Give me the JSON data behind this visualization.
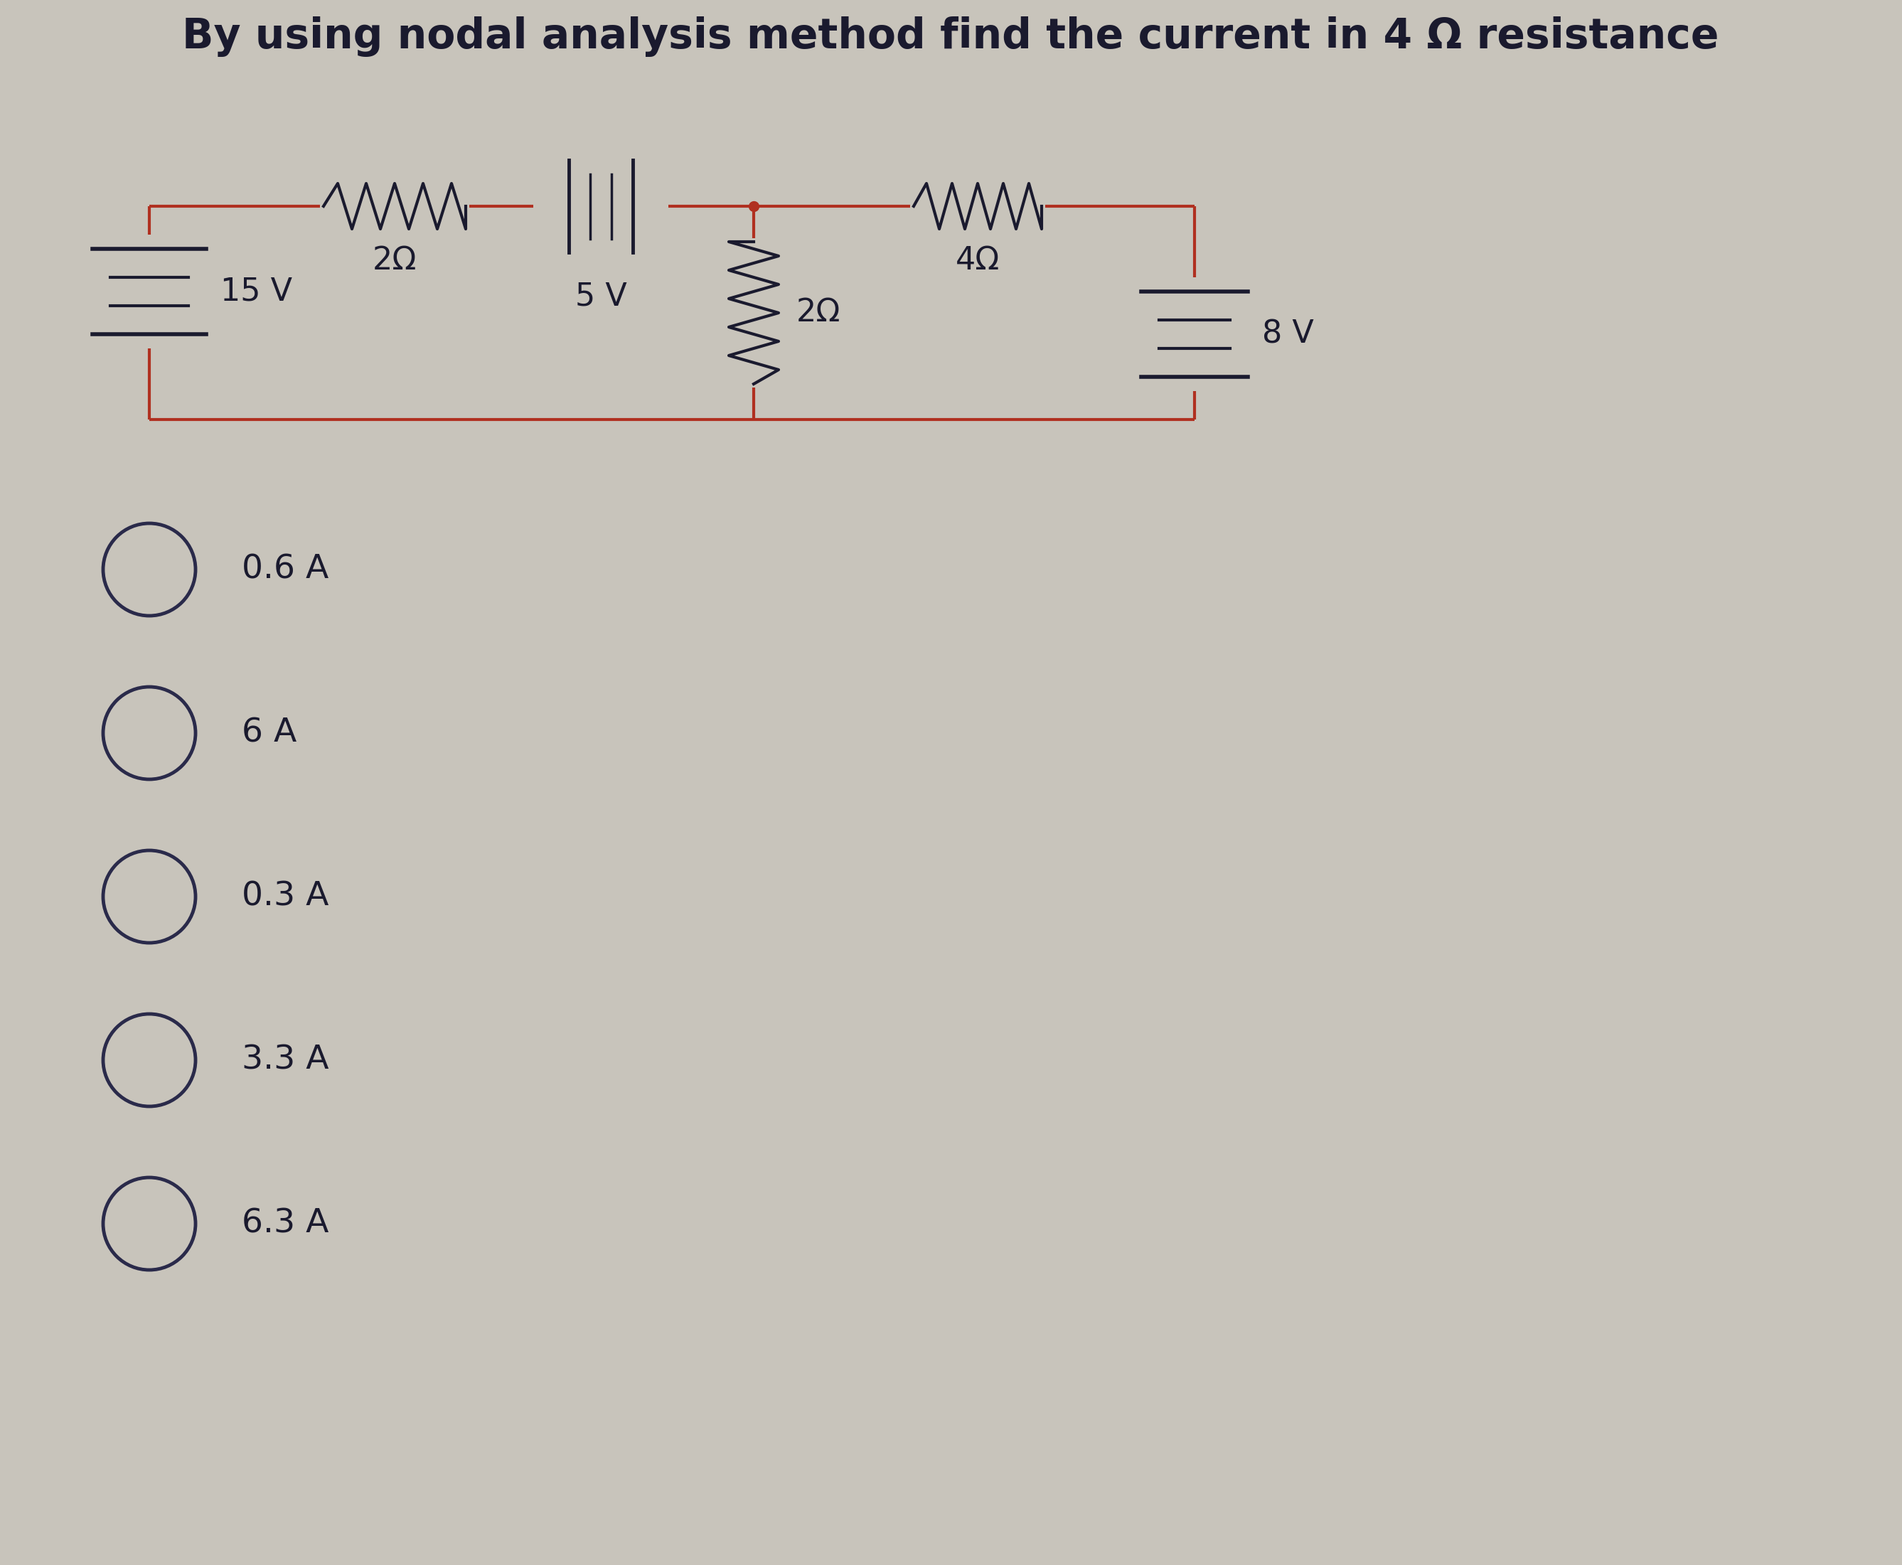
{
  "title": "By using nodal analysis method find the current in 4 Ω resistance",
  "bg_color": "#c8c4bb",
  "circuit_color": "#b03020",
  "component_color": "#1a1a2e",
  "options": [
    "0.6 A",
    "6 A",
    "0.3 A",
    "3.3 A",
    "6.3 A"
  ],
  "title_fontsize": 42,
  "comp_fontsize": 32,
  "opt_fontsize": 34
}
